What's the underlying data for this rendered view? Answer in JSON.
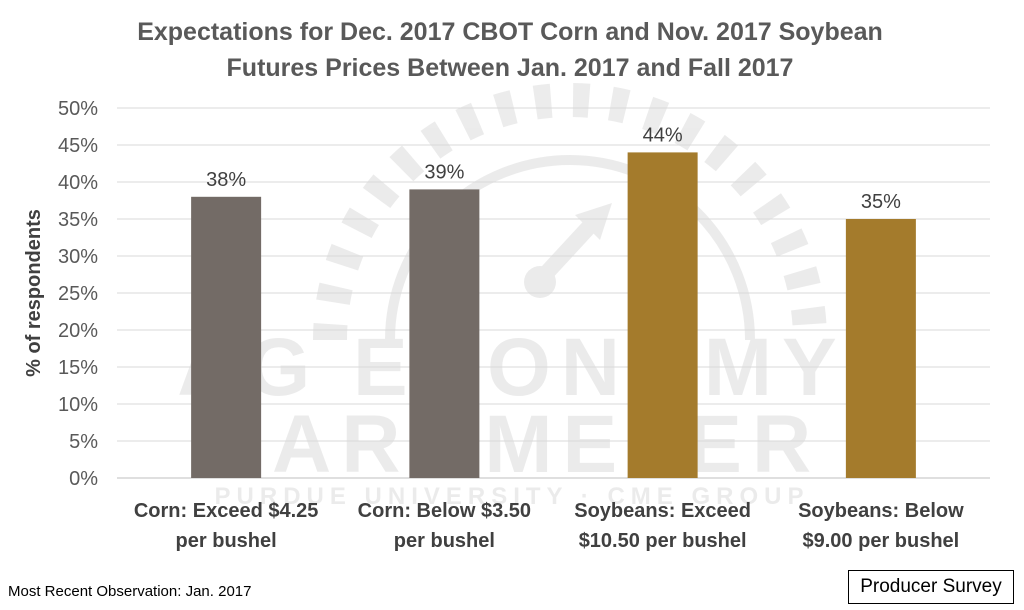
{
  "chart_data": {
    "type": "bar",
    "title_lines": [
      "Expectations for Dec. 2017 CBOT Corn and Nov. 2017 Soybean",
      "Futures Prices Between Jan. 2017 and Fall 2017"
    ],
    "xlabel": "",
    "ylabel": "% of respondents",
    "ylim": [
      0,
      50
    ],
    "y_ticks": [
      "0%",
      "5%",
      "10%",
      "15%",
      "20%",
      "25%",
      "30%",
      "35%",
      "40%",
      "45%",
      "50%"
    ],
    "grid": true,
    "categories": [
      [
        "Corn: Exceed $4.25",
        "per bushel"
      ],
      [
        "Corn: Below $3.50",
        "per bushel"
      ],
      [
        "Soybeans: Exceed",
        "$10.50 per bushel"
      ],
      [
        "Soybeans: Below",
        "$9.00 per bushel"
      ]
    ],
    "values": [
      38,
      39,
      44,
      35
    ],
    "data_labels": [
      "38%",
      "39%",
      "44%",
      "35%"
    ],
    "bar_colors": [
      "#736b66",
      "#736b66",
      "#a47b2c",
      "#a47b2c"
    ]
  },
  "watermark": {
    "line1": "AG ECONOMY",
    "line2": "BAROMETER",
    "line3": "PURDUE UNIVERSITY · CME GROUP"
  },
  "footnote": "Most Recent Observation: Jan. 2017",
  "badge": "Producer Survey"
}
